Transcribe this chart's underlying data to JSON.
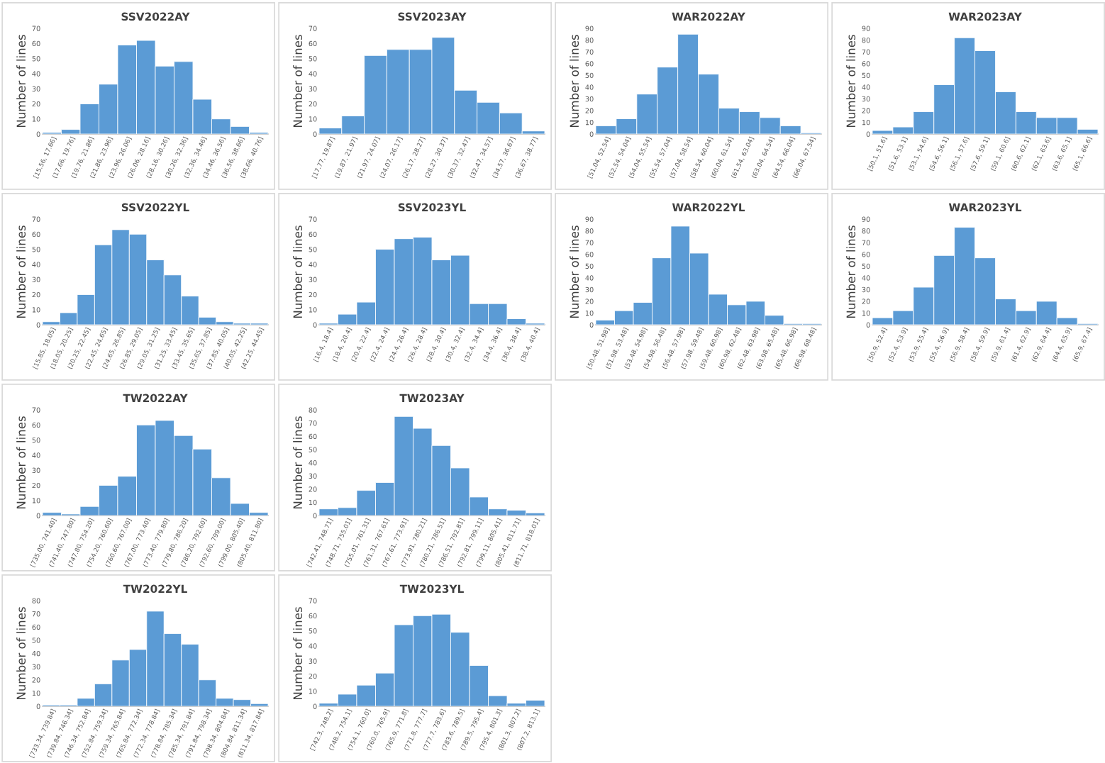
{
  "chart_data": [
    {
      "type": "bar",
      "title": "SSV2022AY",
      "ylabel": "Number of lines",
      "categories": [
        "[15.56, 17.66]",
        "(17.66, 19.76]",
        "(19.76, 21.86]",
        "(21.86, 23.96]",
        "(23.96, 26.06]",
        "(26.06, 28.16]",
        "(28.16, 30.26]",
        "(30.26, 32.36]",
        "(32.36, 34.46]",
        "(34.46, 36.56]",
        "(36.56, 38.66]",
        "(38.66, 40.76]"
      ],
      "values": [
        1,
        3,
        20,
        33,
        59,
        62,
        45,
        48,
        23,
        10,
        5,
        1
      ],
      "color": "#5b9bd5",
      "ylim": [
        0,
        70
      ],
      "yticks": [
        0,
        10,
        20,
        30,
        40,
        50,
        60,
        70
      ],
      "grid": false,
      "legend": false
    },
    {
      "type": "bar",
      "title": "SSV2023AY",
      "ylabel": "Number of lines",
      "categories": [
        "[17.77, 19.87]",
        "(19.87, 21.97]",
        "(21.97, 24.07]",
        "(24.07, 26.17]",
        "(26.17, 28.27]",
        "(28.27, 30.37]",
        "(30.37, 32.47]",
        "(32.47, 34.57]",
        "(34.57, 36.67]",
        "(36.67, 38.77]"
      ],
      "values": [
        4,
        12,
        52,
        56,
        56,
        64,
        29,
        21,
        14,
        2
      ],
      "color": "#5b9bd5",
      "ylim": [
        0,
        70
      ],
      "yticks": [
        0,
        10,
        20,
        30,
        40,
        50,
        60,
        70
      ],
      "grid": false,
      "legend": false
    },
    {
      "type": "bar",
      "title": "WAR2022AY",
      "ylabel": "Number of lines",
      "categories": [
        "[51.04, 52.54]",
        "(52.54, 54.04]",
        "(54.04, 55.54]",
        "(55.54, 57.04]",
        "(57.04, 58.54]",
        "(58.54, 60.04]",
        "(60.04, 61.54]",
        "(61.54, 63.04]",
        "(63.04, 64.54]",
        "(64.54, 66.04]",
        "(66.04, 67.54]"
      ],
      "values": [
        7,
        13,
        34,
        57,
        85,
        51,
        22,
        19,
        14,
        7,
        1
      ],
      "color": "#5b9bd5",
      "ylim": [
        0,
        90
      ],
      "yticks": [
        0,
        10,
        20,
        30,
        40,
        50,
        60,
        70,
        80,
        90
      ],
      "grid": false,
      "legend": false
    },
    {
      "type": "bar",
      "title": "WAR2023AY",
      "ylabel": "Number of lines",
      "categories": [
        "[50.1, 51.6]",
        "(51.6, 53.1]",
        "(53.1, 54.6]",
        "(54.6, 56.1]",
        "(56.1, 57.6]",
        "(57.6, 59.1]",
        "(59.1, 60.6]",
        "(60.6, 62.1]",
        "(62.1, 63.6]",
        "(63.6, 65.1]",
        "(65.1, 66.6]"
      ],
      "values": [
        3,
        6,
        19,
        42,
        82,
        71,
        36,
        19,
        14,
        14,
        4
      ],
      "color": "#5b9bd5",
      "ylim": [
        0,
        90
      ],
      "yticks": [
        0,
        10,
        20,
        30,
        40,
        50,
        60,
        70,
        80,
        90
      ],
      "grid": false,
      "legend": false
    },
    {
      "type": "bar",
      "title": "SSV2022YL",
      "ylabel": "Number of lines",
      "categories": [
        "[15.85, 18.05]",
        "(18.05, 20.25]",
        "(20.25, 22.45]",
        "(22.45, 24.65]",
        "(24.65, 26.85]",
        "(26.85, 29.05]",
        "(29.05, 31.25]",
        "(31.25, 33.45]",
        "(33.45, 35.65]",
        "(35.65, 37.85]",
        "(37.85, 40.05]",
        "(40.05, 42.25]",
        "(42.25, 44.45]"
      ],
      "values": [
        2,
        8,
        20,
        53,
        63,
        60,
        43,
        33,
        19,
        5,
        2,
        1,
        1
      ],
      "color": "#5b9bd5",
      "ylim": [
        0,
        70
      ],
      "yticks": [
        0,
        10,
        20,
        30,
        40,
        50,
        60,
        70
      ],
      "grid": false,
      "legend": false
    },
    {
      "type": "bar",
      "title": "SSV2023YL",
      "ylabel": "Number of lines",
      "categories": [
        "[16.4, 18.4]",
        "(18.4, 20.4]",
        "(20.4, 22.4]",
        "(22.4, 24.4]",
        "(24.4, 26.4]",
        "(26.4, 28.4]",
        "(28.4, 30.4]",
        "(30.4, 32.4]",
        "(32.4, 34.4]",
        "(34.4, 36.4]",
        "(36.4, 38.4]",
        "(38.4, 40.4]"
      ],
      "values": [
        1,
        7,
        15,
        50,
        57,
        58,
        43,
        46,
        14,
        14,
        4,
        1
      ],
      "color": "#5b9bd5",
      "ylim": [
        0,
        70
      ],
      "yticks": [
        0,
        10,
        20,
        30,
        40,
        50,
        60,
        70
      ],
      "grid": false,
      "legend": false
    },
    {
      "type": "bar",
      "title": "WAR2022YL",
      "ylabel": "Number of lines",
      "categories": [
        "[50.48, 51.98]",
        "(51.98, 53.48]",
        "(53.48, 54.98]",
        "(54.98, 56.48]",
        "(56.48, 57.98]",
        "(57.98, 59.48]",
        "(59.48, 60.98]",
        "(60.98, 62.48]",
        "(62.48, 63.98]",
        "(63.98, 65.48]",
        "(65.48, 66.98]",
        "(66.98, 68.48]"
      ],
      "values": [
        4,
        12,
        19,
        57,
        84,
        61,
        26,
        17,
        20,
        8,
        1,
        1
      ],
      "color": "#5b9bd5",
      "ylim": [
        0,
        90
      ],
      "yticks": [
        0,
        10,
        20,
        30,
        40,
        50,
        60,
        70,
        80,
        90
      ],
      "grid": false,
      "legend": false
    },
    {
      "type": "bar",
      "title": "WAR2023YL",
      "ylabel": "Number of lines",
      "categories": [
        "[50.9, 52.4]",
        "(52.4, 53.9]",
        "(53.9, 55.4]",
        "(55.4, 56.9]",
        "(56.9, 58.4]",
        "(58.4, 59.9]",
        "(59.9, 61.4]",
        "(61.4, 62.9]",
        "(62.9, 64.4]",
        "(64.4, 65.9]",
        "(65.9, 67.4]"
      ],
      "values": [
        6,
        12,
        32,
        59,
        83,
        57,
        22,
        12,
        20,
        6,
        1
      ],
      "color": "#5b9bd5",
      "ylim": [
        0,
        90
      ],
      "yticks": [
        0,
        10,
        20,
        30,
        40,
        50,
        60,
        70,
        80,
        90
      ],
      "grid": false,
      "legend": false
    },
    {
      "type": "bar",
      "title": "TW2022AY",
      "ylabel": "Number of lines",
      "categories": [
        "[735.00, 741.40]",
        "(741.40, 747.80]",
        "(747.80, 754.20]",
        "(754.20, 760.60]",
        "(760.60, 767.00]",
        "(767.00, 773.40]",
        "(773.40, 779.80]",
        "(779.80, 786.20]",
        "(786.20, 792.60]",
        "(792.60, 799.00]",
        "(799.00, 805.40]",
        "(805.40, 811.80]"
      ],
      "values": [
        2,
        1,
        6,
        20,
        26,
        60,
        63,
        53,
        44,
        25,
        8,
        2
      ],
      "color": "#5b9bd5",
      "ylim": [
        0,
        70
      ],
      "yticks": [
        0,
        10,
        20,
        30,
        40,
        50,
        60,
        70
      ],
      "grid": false,
      "legend": false
    },
    {
      "type": "bar",
      "title": "TW2023AY",
      "ylabel": "Number of lines",
      "categories": [
        "[742.41, 748.71]",
        "(748.71, 755.01]",
        "(755.01, 761.31]",
        "(761.31, 767.61]",
        "(767.61, 773.91]",
        "(773.91, 780.21]",
        "(780.21, 786.51]",
        "(786.51, 792.81]",
        "(792.81, 799.11]",
        "(799.11, 805.41]",
        "(805.41, 811.71]",
        "(811.71, 818.01]"
      ],
      "values": [
        5,
        6,
        19,
        25,
        75,
        66,
        53,
        36,
        14,
        5,
        4,
        2
      ],
      "color": "#5b9bd5",
      "ylim": [
        0,
        80
      ],
      "yticks": [
        0,
        10,
        20,
        30,
        40,
        50,
        60,
        70,
        80
      ],
      "grid": false,
      "legend": false
    },
    {
      "type": "bar",
      "title": "TW2022YL",
      "ylabel": "Number of lines",
      "categories": [
        "[733.34, 739.84]",
        "(739.84, 746.34]",
        "(746.34, 752.84]",
        "(752.84, 759.34]",
        "(759.34, 765.84]",
        "(765.84, 772.34]",
        "(772.34, 778.84]",
        "(778.84, 785.34]",
        "(785.34, 791.84]",
        "(791.84, 798.34]",
        "(798.34, 804.84]",
        "(804.84, 811.34]",
        "(811.34, 817.84]"
      ],
      "values": [
        1,
        1,
        6,
        17,
        35,
        43,
        72,
        55,
        47,
        20,
        6,
        5,
        2
      ],
      "color": "#5b9bd5",
      "ylim": [
        0,
        80
      ],
      "yticks": [
        0,
        10,
        20,
        30,
        40,
        50,
        60,
        70,
        80
      ],
      "grid": false,
      "legend": false
    },
    {
      "type": "bar",
      "title": "TW2023YL",
      "ylabel": "Number of lines",
      "categories": [
        "[742.3, 748.2]",
        "(748.2, 754.1]",
        "(754.1, 760.0]",
        "(760.0, 765.9]",
        "(765.9, 771.8]",
        "(771.8, 777.7]",
        "(777.7, 783.6]",
        "(783.6, 789.5]",
        "(789.5, 795.4]",
        "(795.4, 801.3]",
        "(801.3, 807.2]",
        "(807.2, 813.1]"
      ],
      "values": [
        2,
        8,
        14,
        22,
        54,
        60,
        61,
        49,
        27,
        7,
        2,
        4
      ],
      "color": "#5b9bd5",
      "ylim": [
        0,
        70
      ],
      "yticks": [
        0,
        10,
        20,
        30,
        40,
        50,
        60,
        70
      ],
      "grid": false,
      "legend": false
    }
  ]
}
